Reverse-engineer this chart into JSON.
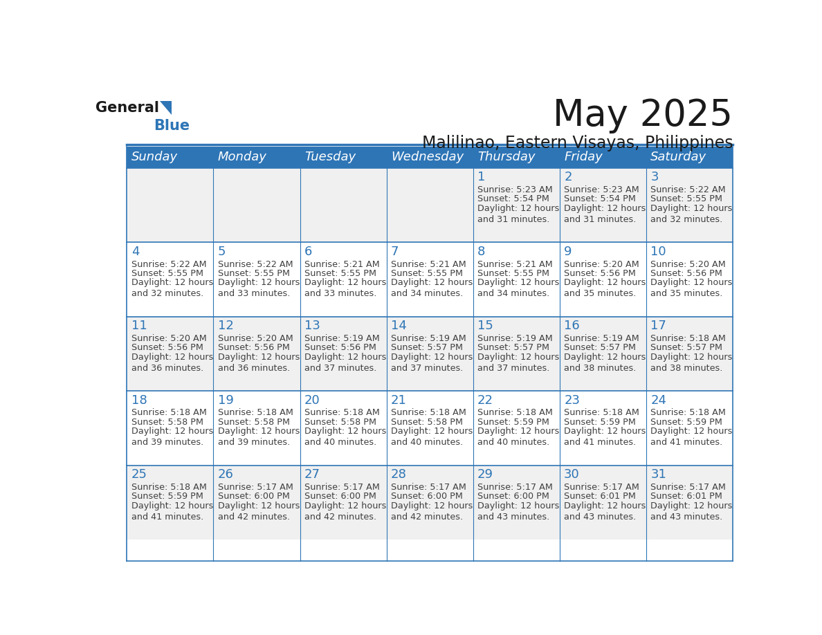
{
  "title": "May 2025",
  "subtitle": "Malilinao, Eastern Visayas, Philippines",
  "days_of_week": [
    "Sunday",
    "Monday",
    "Tuesday",
    "Wednesday",
    "Thursday",
    "Friday",
    "Saturday"
  ],
  "header_bg": "#2E75B6",
  "header_text": "#FFFFFF",
  "row_bg_odd": "#F0F0F0",
  "row_bg_even": "#FFFFFF",
  "cell_border": "#2E75B6",
  "day_number_color": "#2E75B6",
  "text_color": "#404040",
  "calendar": [
    [
      {
        "day": "",
        "sunrise": "",
        "sunset": "",
        "daylight": ""
      },
      {
        "day": "",
        "sunrise": "",
        "sunset": "",
        "daylight": ""
      },
      {
        "day": "",
        "sunrise": "",
        "sunset": "",
        "daylight": ""
      },
      {
        "day": "",
        "sunrise": "",
        "sunset": "",
        "daylight": ""
      },
      {
        "day": "1",
        "sunrise": "5:23 AM",
        "sunset": "5:54 PM",
        "daylight": "12 hours\nand 31 minutes."
      },
      {
        "day": "2",
        "sunrise": "5:23 AM",
        "sunset": "5:54 PM",
        "daylight": "12 hours\nand 31 minutes."
      },
      {
        "day": "3",
        "sunrise": "5:22 AM",
        "sunset": "5:55 PM",
        "daylight": "12 hours\nand 32 minutes."
      }
    ],
    [
      {
        "day": "4",
        "sunrise": "5:22 AM",
        "sunset": "5:55 PM",
        "daylight": "12 hours\nand 32 minutes."
      },
      {
        "day": "5",
        "sunrise": "5:22 AM",
        "sunset": "5:55 PM",
        "daylight": "12 hours\nand 33 minutes."
      },
      {
        "day": "6",
        "sunrise": "5:21 AM",
        "sunset": "5:55 PM",
        "daylight": "12 hours\nand 33 minutes."
      },
      {
        "day": "7",
        "sunrise": "5:21 AM",
        "sunset": "5:55 PM",
        "daylight": "12 hours\nand 34 minutes."
      },
      {
        "day": "8",
        "sunrise": "5:21 AM",
        "sunset": "5:55 PM",
        "daylight": "12 hours\nand 34 minutes."
      },
      {
        "day": "9",
        "sunrise": "5:20 AM",
        "sunset": "5:56 PM",
        "daylight": "12 hours\nand 35 minutes."
      },
      {
        "day": "10",
        "sunrise": "5:20 AM",
        "sunset": "5:56 PM",
        "daylight": "12 hours\nand 35 minutes."
      }
    ],
    [
      {
        "day": "11",
        "sunrise": "5:20 AM",
        "sunset": "5:56 PM",
        "daylight": "12 hours\nand 36 minutes."
      },
      {
        "day": "12",
        "sunrise": "5:20 AM",
        "sunset": "5:56 PM",
        "daylight": "12 hours\nand 36 minutes."
      },
      {
        "day": "13",
        "sunrise": "5:19 AM",
        "sunset": "5:56 PM",
        "daylight": "12 hours\nand 37 minutes."
      },
      {
        "day": "14",
        "sunrise": "5:19 AM",
        "sunset": "5:57 PM",
        "daylight": "12 hours\nand 37 minutes."
      },
      {
        "day": "15",
        "sunrise": "5:19 AM",
        "sunset": "5:57 PM",
        "daylight": "12 hours\nand 37 minutes."
      },
      {
        "day": "16",
        "sunrise": "5:19 AM",
        "sunset": "5:57 PM",
        "daylight": "12 hours\nand 38 minutes."
      },
      {
        "day": "17",
        "sunrise": "5:18 AM",
        "sunset": "5:57 PM",
        "daylight": "12 hours\nand 38 minutes."
      }
    ],
    [
      {
        "day": "18",
        "sunrise": "5:18 AM",
        "sunset": "5:58 PM",
        "daylight": "12 hours\nand 39 minutes."
      },
      {
        "day": "19",
        "sunrise": "5:18 AM",
        "sunset": "5:58 PM",
        "daylight": "12 hours\nand 39 minutes."
      },
      {
        "day": "20",
        "sunrise": "5:18 AM",
        "sunset": "5:58 PM",
        "daylight": "12 hours\nand 40 minutes."
      },
      {
        "day": "21",
        "sunrise": "5:18 AM",
        "sunset": "5:58 PM",
        "daylight": "12 hours\nand 40 minutes."
      },
      {
        "day": "22",
        "sunrise": "5:18 AM",
        "sunset": "5:59 PM",
        "daylight": "12 hours\nand 40 minutes."
      },
      {
        "day": "23",
        "sunrise": "5:18 AM",
        "sunset": "5:59 PM",
        "daylight": "12 hours\nand 41 minutes."
      },
      {
        "day": "24",
        "sunrise": "5:18 AM",
        "sunset": "5:59 PM",
        "daylight": "12 hours\nand 41 minutes."
      }
    ],
    [
      {
        "day": "25",
        "sunrise": "5:18 AM",
        "sunset": "5:59 PM",
        "daylight": "12 hours\nand 41 minutes."
      },
      {
        "day": "26",
        "sunrise": "5:17 AM",
        "sunset": "6:00 PM",
        "daylight": "12 hours\nand 42 minutes."
      },
      {
        "day": "27",
        "sunrise": "5:17 AM",
        "sunset": "6:00 PM",
        "daylight": "12 hours\nand 42 minutes."
      },
      {
        "day": "28",
        "sunrise": "5:17 AM",
        "sunset": "6:00 PM",
        "daylight": "12 hours\nand 42 minutes."
      },
      {
        "day": "29",
        "sunrise": "5:17 AM",
        "sunset": "6:00 PM",
        "daylight": "12 hours\nand 43 minutes."
      },
      {
        "day": "30",
        "sunrise": "5:17 AM",
        "sunset": "6:01 PM",
        "daylight": "12 hours\nand 43 minutes."
      },
      {
        "day": "31",
        "sunrise": "5:17 AM",
        "sunset": "6:01 PM",
        "daylight": "12 hours\nand 43 minutes."
      }
    ]
  ],
  "logo_general_color": "#1a1a1a",
  "logo_blue_color": "#2E75B6",
  "title_fontsize": 38,
  "subtitle_fontsize": 17,
  "header_fontsize": 13,
  "day_number_fontsize": 13,
  "cell_text_fontsize": 9.2
}
